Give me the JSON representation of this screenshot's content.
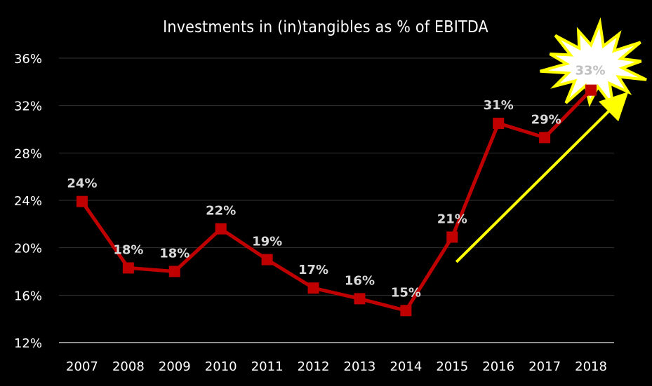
{
  "chart_data": {
    "type": "line",
    "title": "Investments in (in)tangibles as % of EBITDA",
    "xlabel": "",
    "ylabel": "",
    "categories": [
      "2007",
      "2008",
      "2009",
      "2010",
      "2011",
      "2012",
      "2013",
      "2014",
      "2015",
      "2016",
      "2017",
      "2018"
    ],
    "series": [
      {
        "values": [
          23.9,
          18.3,
          18.0,
          21.6,
          19.0,
          16.6,
          15.7,
          14.7,
          20.9,
          30.5,
          29.3,
          33.3
        ],
        "data_labels": [
          "24%",
          "18%",
          "18%",
          "22%",
          "19%",
          "17%",
          "16%",
          "15%",
          "21%",
          "31%",
          "29%",
          "33%"
        ],
        "color": "#c00000"
      }
    ],
    "ylim": [
      12,
      36
    ],
    "yticks": [
      12,
      16,
      20,
      24,
      28,
      32,
      36
    ],
    "ytick_labels": [
      "12%",
      "16%",
      "20%",
      "24%",
      "28%",
      "32%",
      "36%"
    ],
    "grid": true,
    "legend": "none",
    "annotations": {
      "trend_arrow_color": "#ffff00",
      "starburst_highlight": "2018",
      "starburst_fill": "#ffffff",
      "starburst_stroke": "#ffff00"
    },
    "colors": {
      "background": "#000000",
      "text": "#ffffff",
      "gridline": "#333333",
      "axis": "#bfbfbf",
      "data_label": "#d9d9d9"
    }
  }
}
